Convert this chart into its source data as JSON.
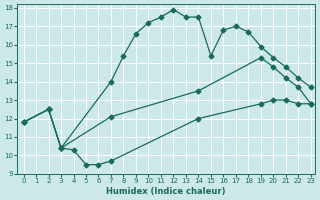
{
  "xlabel": "Humidex (Indice chaleur)",
  "bg_color": "#cce8e8",
  "grid_color": "#b0d4d4",
  "line_color": "#1a6b5a",
  "xlim": [
    0,
    23
  ],
  "ylim": [
    9,
    18
  ],
  "xticks": [
    0,
    1,
    2,
    3,
    4,
    5,
    6,
    7,
    8,
    9,
    10,
    11,
    12,
    13,
    14,
    15,
    16,
    17,
    18,
    19,
    20,
    21,
    22,
    23
  ],
  "yticks": [
    9,
    10,
    11,
    12,
    13,
    14,
    15,
    16,
    17,
    18
  ],
  "line_upper": {
    "x": [
      0,
      2,
      3,
      7,
      8,
      9,
      10,
      11,
      12,
      13,
      14,
      15,
      16,
      17,
      18,
      19,
      20,
      21,
      22,
      23
    ],
    "y": [
      11.8,
      12.5,
      10.4,
      14.0,
      15.4,
      16.6,
      17.2,
      17.5,
      17.9,
      17.5,
      17.5,
      15.4,
      16.8,
      17.0,
      16.7,
      15.9,
      15.3,
      14.8,
      14.2,
      13.7
    ]
  },
  "line_diag": {
    "x": [
      0,
      2,
      3,
      7,
      14,
      19,
      20,
      21,
      22,
      23
    ],
    "y": [
      11.8,
      12.5,
      10.4,
      12.1,
      13.5,
      15.3,
      14.8,
      14.2,
      13.7,
      12.8
    ]
  },
  "line_lower": {
    "x": [
      0,
      2,
      3,
      4,
      5,
      6,
      7,
      14,
      19,
      20,
      21,
      22,
      23
    ],
    "y": [
      11.8,
      12.5,
      10.4,
      10.3,
      9.5,
      9.5,
      9.7,
      12.0,
      12.8,
      13.0,
      13.0,
      12.8,
      12.8
    ]
  }
}
